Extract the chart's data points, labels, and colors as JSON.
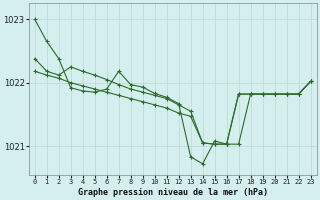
{
  "title": "Graphe pression niveau de la mer (hPa)",
  "background_color": "#d5eeee",
  "grid_color": "#b8d8d8",
  "line_color": "#2d6b2d",
  "xlim": [
    -0.5,
    23.5
  ],
  "ylim": [
    1020.55,
    1023.25
  ],
  "yticks": [
    1021,
    1022,
    1023
  ],
  "xticks": [
    0,
    1,
    2,
    3,
    4,
    5,
    6,
    7,
    8,
    9,
    10,
    11,
    12,
    13,
    14,
    15,
    16,
    17,
    18,
    19,
    20,
    21,
    22,
    23
  ],
  "s1": [
    1023.0,
    1022.65,
    1022.38,
    1021.92,
    1021.87,
    1021.85,
    1021.9,
    1022.18,
    1021.97,
    1021.93,
    1021.83,
    1021.77,
    1021.67,
    1020.83,
    1020.72,
    1021.08,
    1021.03,
    1021.03,
    1021.82,
    1021.82,
    1021.82,
    1021.82,
    1021.82,
    1022.02
  ],
  "s2": [
    1022.38,
    1022.18,
    1022.12,
    1022.25,
    1022.18,
    1022.12,
    1022.05,
    1021.97,
    1021.9,
    1021.85,
    1021.8,
    1021.75,
    1021.65,
    1021.55,
    1021.05,
    1021.03,
    1021.03,
    1021.82,
    1021.82,
    1021.82,
    1021.82,
    1021.82,
    1021.82,
    1022.02
  ],
  "s3": [
    1022.18,
    1022.12,
    1022.07,
    1022.0,
    1021.95,
    1021.9,
    1021.85,
    1021.8,
    1021.75,
    1021.7,
    1021.65,
    1021.6,
    1021.52,
    1021.47,
    1021.05,
    1021.03,
    1021.03,
    1021.82,
    1021.82,
    1021.82,
    1021.82,
    1021.82,
    1021.82,
    1022.02
  ],
  "xlabel_fontsize": 6,
  "ylabel_fontsize": 6,
  "tick_fontsize": 5
}
